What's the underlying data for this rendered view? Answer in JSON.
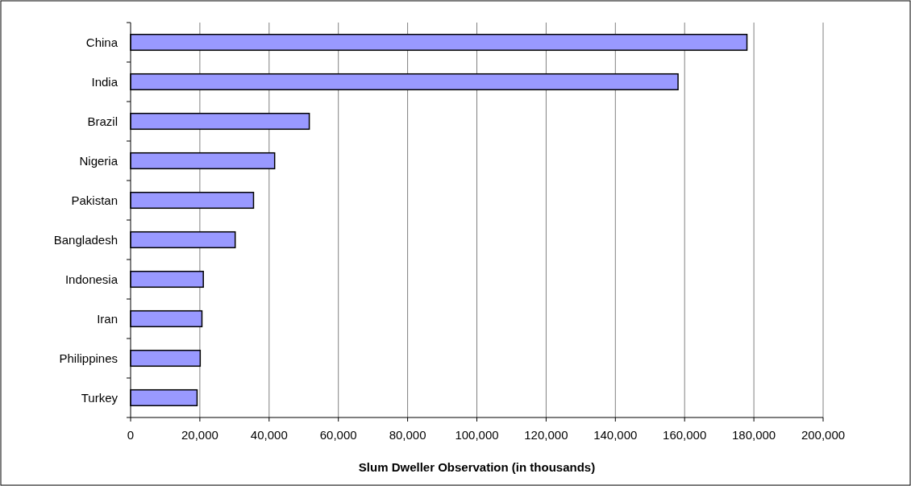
{
  "chart_data": {
    "type": "bar",
    "orientation": "horizontal",
    "xlabel": "Slum Dweller Observation (in thousands)",
    "categories": [
      "China",
      "India",
      "Brazil",
      "Nigeria",
      "Pakistan",
      "Bangladesh",
      "Indonesia",
      "Iran",
      "Philippines",
      "Turkey"
    ],
    "values": [
      178000,
      158100,
      51600,
      41600,
      35500,
      30200,
      21000,
      20600,
      20100,
      19200
    ],
    "color": "#9999ff",
    "xlim": [
      0,
      200000
    ],
    "xticks": [
      {
        "value": 0,
        "label": "0"
      },
      {
        "value": 20000,
        "label": "20,000"
      },
      {
        "value": 40000,
        "label": "40,000"
      },
      {
        "value": 60000,
        "label": "60,000"
      },
      {
        "value": 80000,
        "label": "80,000"
      },
      {
        "value": 100000,
        "label": "100,000"
      },
      {
        "value": 120000,
        "label": "120,000"
      },
      {
        "value": 140000,
        "label": "140,000"
      },
      {
        "value": 160000,
        "label": "160,000"
      },
      {
        "value": 180000,
        "label": "180,000"
      },
      {
        "value": 200000,
        "label": "200,000"
      }
    ],
    "grid": "x"
  }
}
